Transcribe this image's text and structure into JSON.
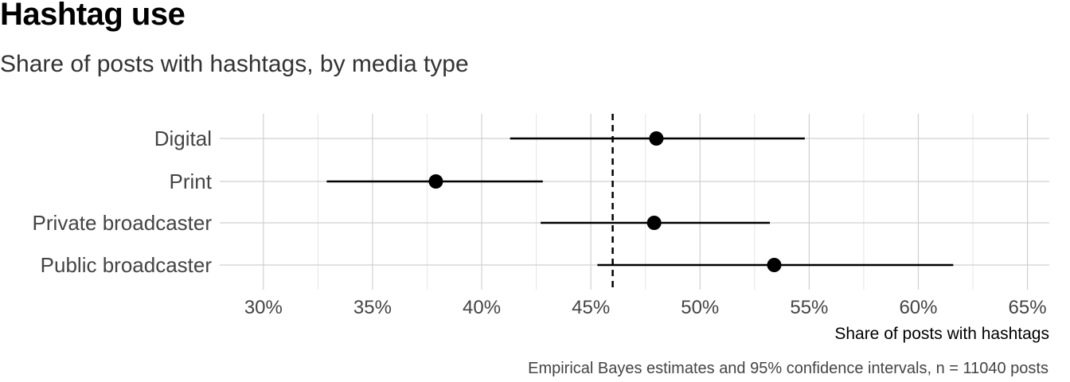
{
  "title": "Hashtag use",
  "subtitle": "Share of posts with hashtags, by media type",
  "caption": "Empirical Bayes estimates and 95% confidence intervals, n = 11040 posts",
  "chart_data": {
    "type": "scatter",
    "title": "Hashtag use",
    "subtitle": "Share of posts with hashtags, by media type",
    "xlabel": "Share of posts with hashtags",
    "ylabel": "",
    "xlim": [
      0.28,
      0.66
    ],
    "x_ticks": [
      0.3,
      0.35,
      0.4,
      0.45,
      0.5,
      0.55,
      0.6,
      0.65
    ],
    "x_tick_labels": [
      "30%",
      "35%",
      "40%",
      "45%",
      "50%",
      "55%",
      "60%",
      "65%"
    ],
    "categories": [
      "Digital",
      "Print",
      "Private broadcaster",
      "Public broadcaster"
    ],
    "estimates": [
      0.48,
      0.379,
      0.479,
      0.534
    ],
    "lower": [
      0.413,
      0.329,
      0.427,
      0.453
    ],
    "upper": [
      0.548,
      0.428,
      0.532,
      0.616
    ],
    "reference_line": 0.46,
    "grid": true,
    "legend": "none"
  }
}
